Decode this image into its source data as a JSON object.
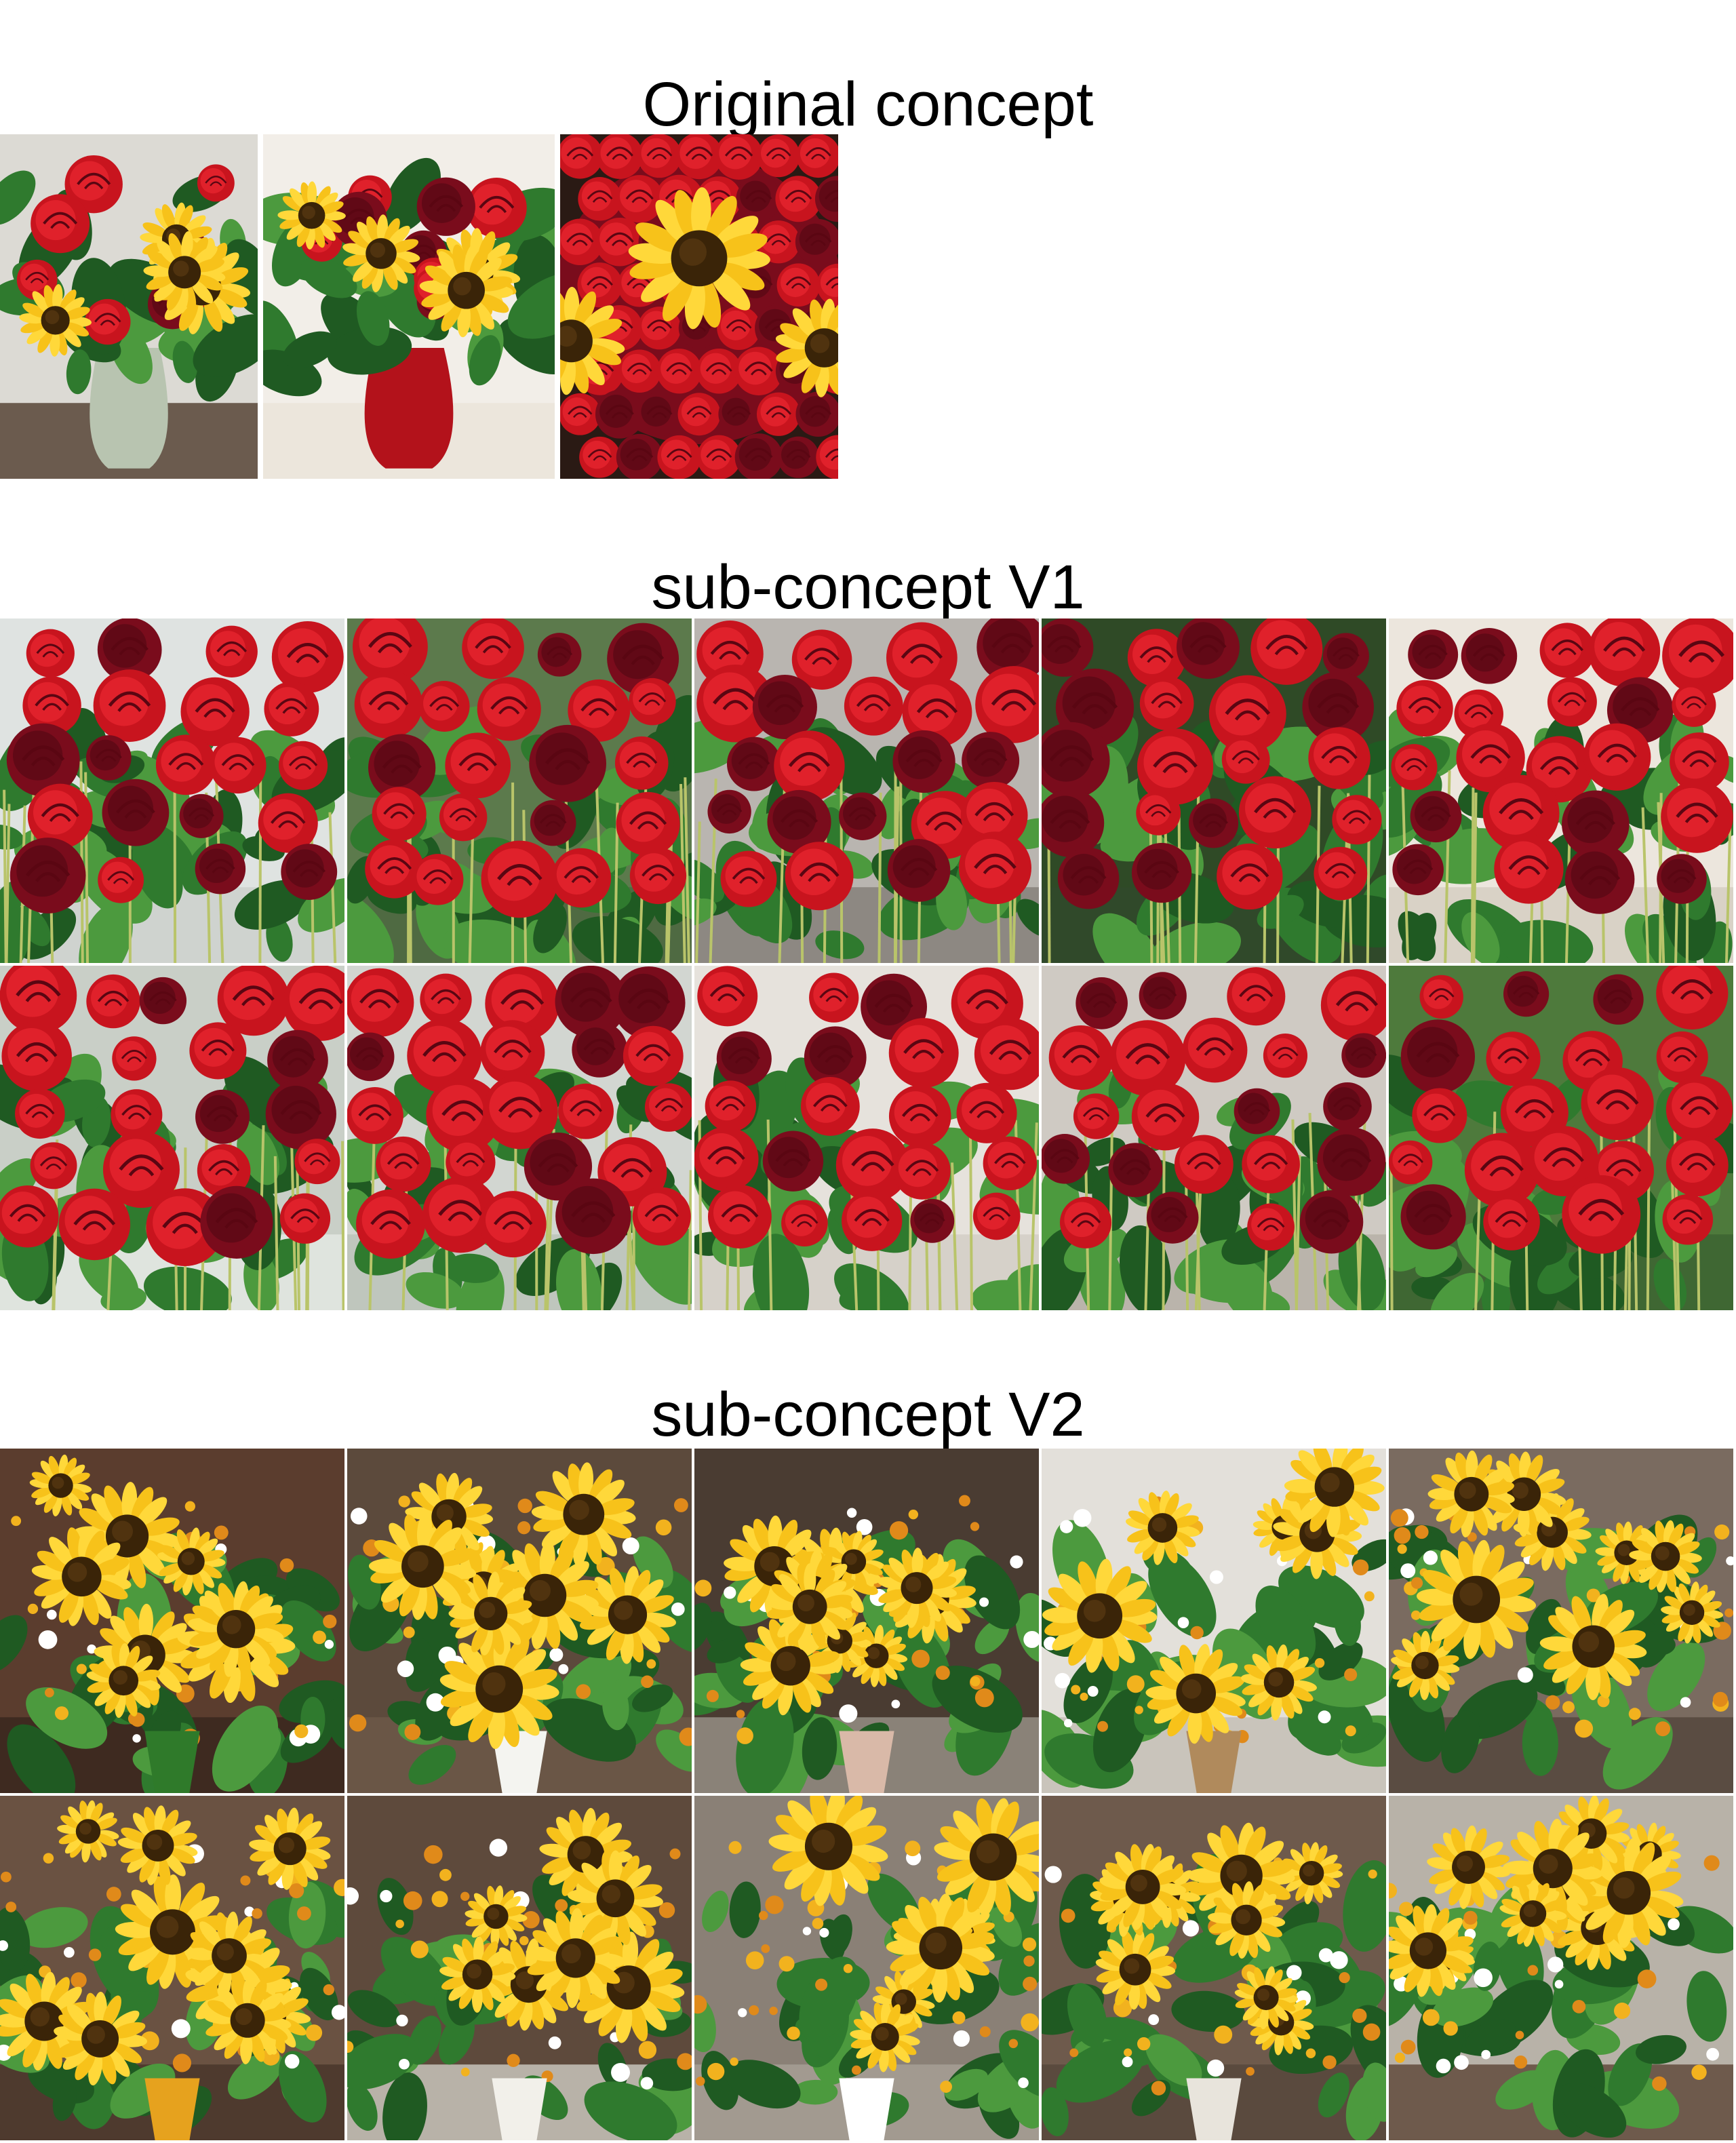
{
  "sections": [
    {
      "title": "Original concept",
      "tiles": [
        {
          "kind": "mixed",
          "bg": "#dcdad4",
          "ground": "#6b5b4e",
          "vase": "#b8c4b0",
          "seed": 11
        },
        {
          "kind": "mixed",
          "bg": "#f2eee8",
          "ground": "#ece6dc",
          "vase": "#b3121b",
          "seed": 23
        },
        {
          "kind": "dome",
          "bg": "#2a1a14",
          "ground": "#2a1a14",
          "vase": "none",
          "seed": 37
        }
      ]
    },
    {
      "title": "sub-concept V1",
      "tiles": [
        {
          "kind": "roses",
          "bg": "#dfe3e1",
          "ground": "#cfd3cf",
          "seed": 101
        },
        {
          "kind": "roses",
          "bg": "#5c7a4c",
          "ground": "#4f6a42",
          "seed": 102
        },
        {
          "kind": "roses",
          "bg": "#b9b5b0",
          "ground": "#8d8882",
          "seed": 103
        },
        {
          "kind": "roses",
          "bg": "#2f4a26",
          "ground": "#30492a",
          "seed": 104
        },
        {
          "kind": "roses",
          "bg": "#ece6dd",
          "ground": "#d9d2c6",
          "seed": 105
        },
        {
          "kind": "roses",
          "bg": "#c9cfc7",
          "ground": "#dfe4de",
          "seed": 106
        },
        {
          "kind": "roses",
          "bg": "#d2d6d1",
          "ground": "#bfc6bd",
          "seed": 107
        },
        {
          "kind": "roses",
          "bg": "#e6e2dc",
          "ground": "#d6d1c9",
          "seed": 108
        },
        {
          "kind": "roses",
          "bg": "#cfcac3",
          "ground": "#bab4ab",
          "seed": 109
        },
        {
          "kind": "roses",
          "bg": "#4e7a3c",
          "ground": "#3f6733",
          "seed": 110
        }
      ]
    },
    {
      "title": "sub-concept V2",
      "tiles": [
        {
          "kind": "sunflowers",
          "bg": "#5b3d2e",
          "ground": "#3e2a20",
          "wrap": "#2f7a2a",
          "seed": 201
        },
        {
          "kind": "sunflowers",
          "bg": "#5c4a3c",
          "ground": "#6a5646",
          "wrap": "#f4f4f0",
          "seed": 202
        },
        {
          "kind": "sunflowers",
          "bg": "#4a3c32",
          "ground": "#8a8278",
          "wrap": "#d9b9a8",
          "seed": 203
        },
        {
          "kind": "sunflowers",
          "bg": "#e3e0da",
          "ground": "#c9c4bb",
          "wrap": "#b08a5c",
          "seed": 204
        },
        {
          "kind": "sunflowers",
          "bg": "#7a6b60",
          "ground": "#5a4c42",
          "wrap": "none",
          "seed": 205
        },
        {
          "kind": "sunflowers",
          "bg": "#6a5242",
          "ground": "#4e3a2e",
          "wrap": "#e6a21e",
          "seed": 206
        },
        {
          "kind": "sunflowers",
          "bg": "#5e4a3c",
          "ground": "#b8b2a8",
          "wrap": "#f2f0ea",
          "seed": 207
        },
        {
          "kind": "sunflowers",
          "bg": "#8a8076",
          "ground": "#a29a90",
          "wrap": "#ffffff",
          "seed": 208
        },
        {
          "kind": "sunflowers",
          "bg": "#6e5a4c",
          "ground": "#5a4a3e",
          "wrap": "#e8e4dc",
          "seed": 209
        },
        {
          "kind": "sunflowers",
          "bg": "#b8b2a8",
          "ground": "#6e5a4c",
          "wrap": "none",
          "seed": 210
        }
      ]
    }
  ],
  "colors": {
    "rose": "#c8141e",
    "rose_dark": "#7a0c1c",
    "rose_light": "#e82630",
    "sunflower": "#f7c21a",
    "sunflower_light": "#ffd83a",
    "sunflower_center": "#3a2408",
    "leaf": "#2f7a2e",
    "leaf_dark": "#1f5a22",
    "leaf_light": "#4c9a3e"
  }
}
